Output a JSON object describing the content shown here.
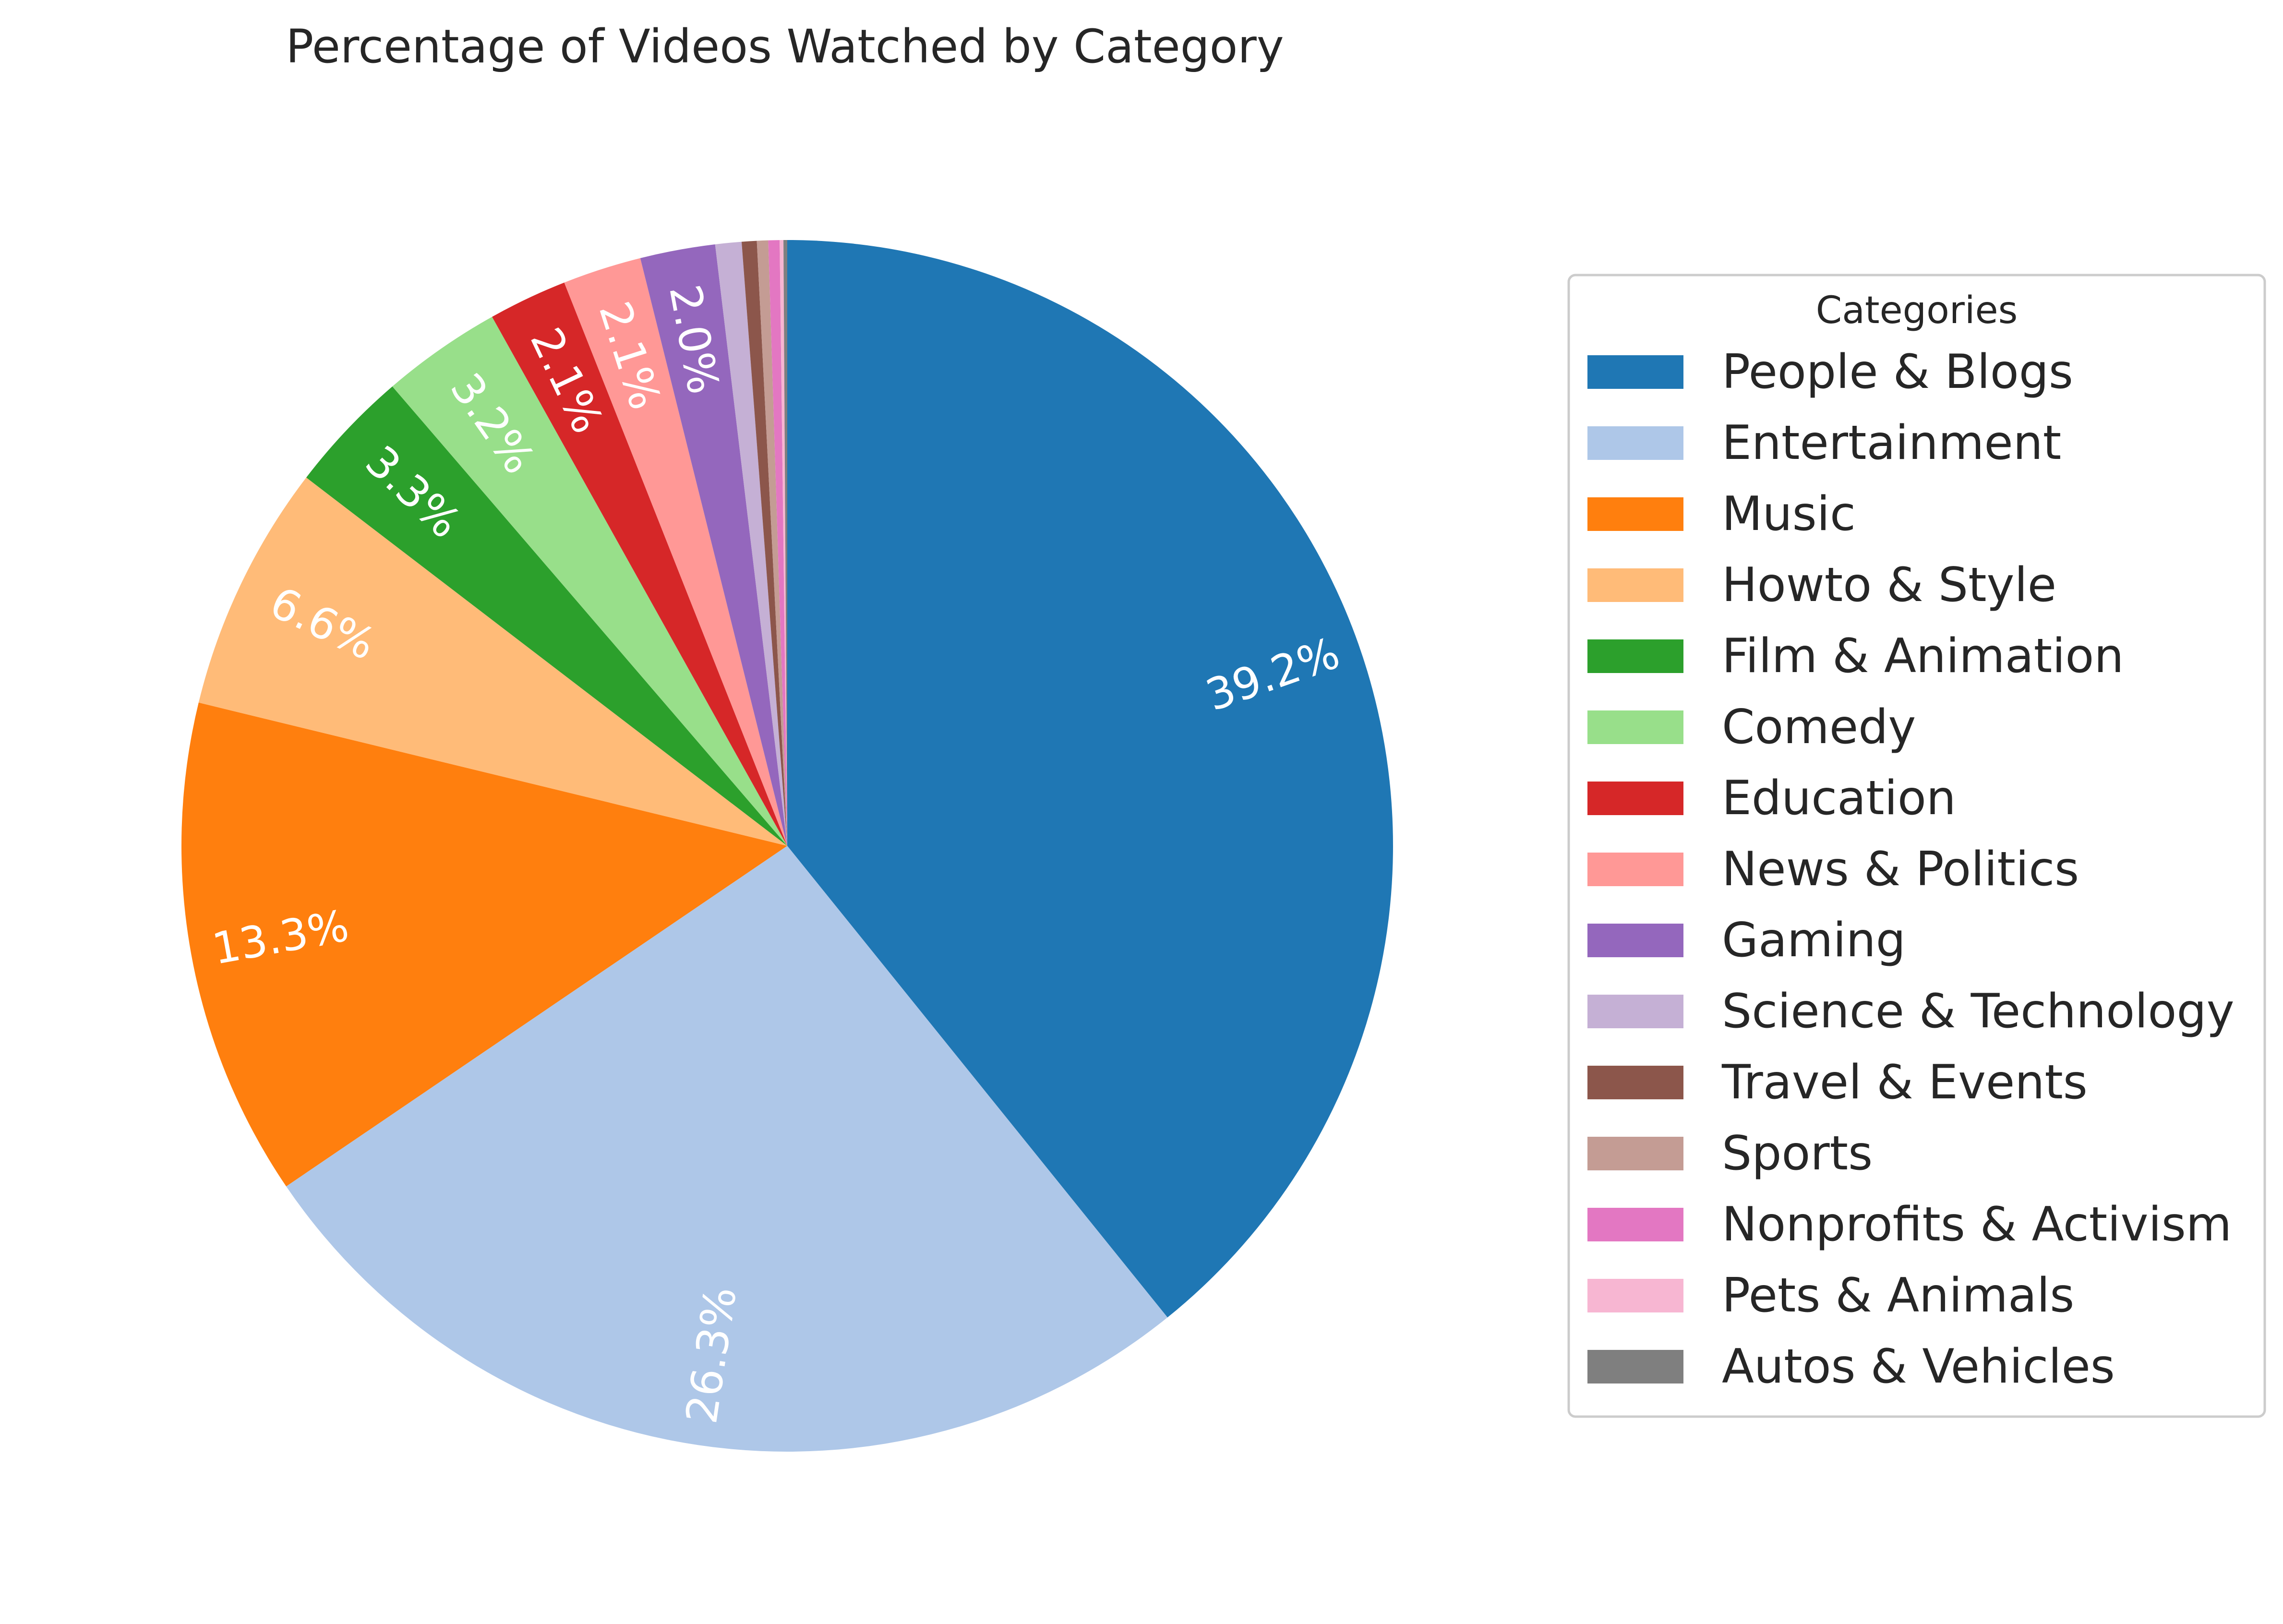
{
  "chart_data": {
    "type": "pie",
    "title": "Percentage of Videos Watched by Category",
    "legend_title": "Categories",
    "legend_position": "right",
    "start_angle_deg": 90,
    "direction": "clockwise",
    "autopct_min_label": 2.0,
    "slices": [
      {
        "label": "People & Blogs",
        "value": 39.2,
        "pct_label": "39.2%",
        "color": "#1f77b4"
      },
      {
        "label": "Entertainment",
        "value": 26.3,
        "pct_label": "26.3%",
        "color": "#aec7e8"
      },
      {
        "label": "Music",
        "value": 13.3,
        "pct_label": "13.3%",
        "color": "#ff7f0e"
      },
      {
        "label": "Howto & Style",
        "value": 6.6,
        "pct_label": "6.6%",
        "color": "#ffbb78"
      },
      {
        "label": "Film & Animation",
        "value": 3.3,
        "pct_label": "3.3%",
        "color": "#2ca02c"
      },
      {
        "label": "Comedy",
        "value": 3.2,
        "pct_label": "3.2%",
        "color": "#98df8a"
      },
      {
        "label": "Education",
        "value": 2.1,
        "pct_label": "2.1%",
        "color": "#d62728"
      },
      {
        "label": "News & Politics",
        "value": 2.1,
        "pct_label": "2.1%",
        "color": "#ff9896"
      },
      {
        "label": "Gaming",
        "value": 2.0,
        "pct_label": "2.0%",
        "color": "#9467bd"
      },
      {
        "label": "Science & Technology",
        "value": 0.7,
        "pct_label": "",
        "color": "#c5b0d5"
      },
      {
        "label": "Travel & Events",
        "value": 0.4,
        "pct_label": "",
        "color": "#8c564b"
      },
      {
        "label": "Sports",
        "value": 0.3,
        "pct_label": "",
        "color": "#c49c94"
      },
      {
        "label": "Nonprofits & Activism",
        "value": 0.3,
        "pct_label": "",
        "color": "#e377c2"
      },
      {
        "label": "Pets & Animals",
        "value": 0.1,
        "pct_label": "",
        "color": "#f7b6d2"
      },
      {
        "label": "Autos & Vehicles",
        "value": 0.1,
        "pct_label": "",
        "color": "#7f7f7f"
      }
    ]
  }
}
